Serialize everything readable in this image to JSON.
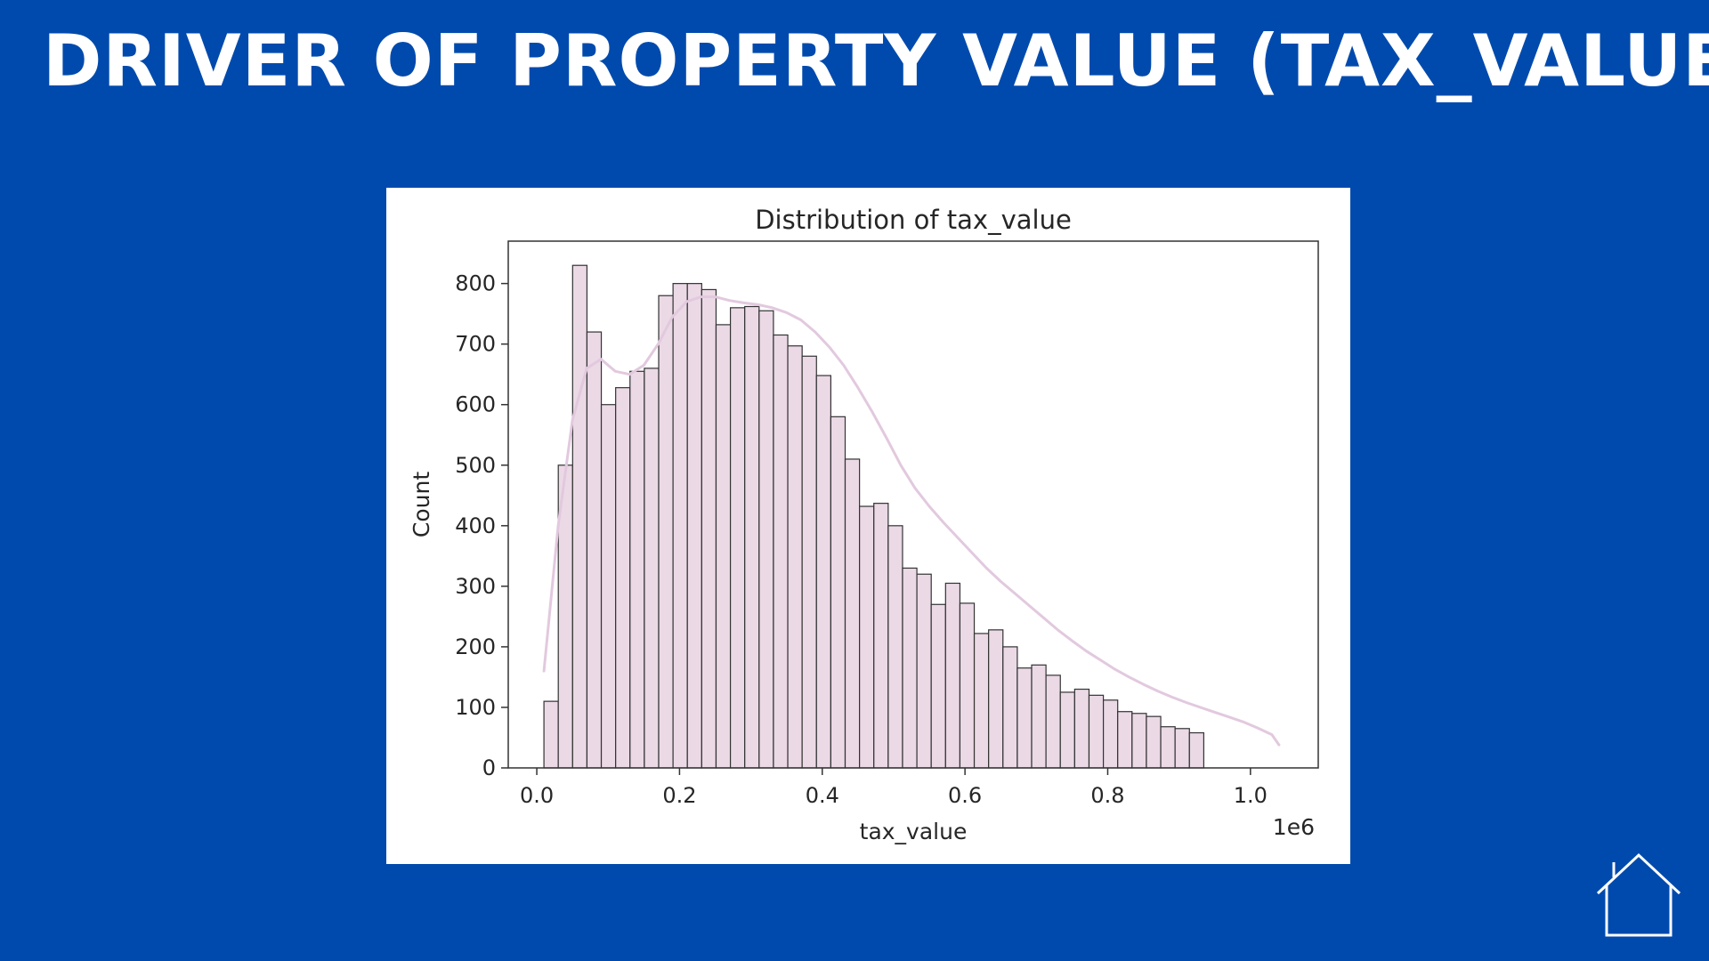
{
  "slide": {
    "title": "DRIVER OF PROPERTY VALUE (TAX_VALUE)",
    "background_color": "#014AAD",
    "home_icon": "home-icon"
  },
  "chart_data": {
    "type": "bar",
    "title": "Distribution of tax_value",
    "xlabel": "tax_value",
    "ylabel": "Count",
    "x_scale_label": "1e6",
    "xlim": [
      -0.04,
      1.095
    ],
    "ylim": [
      0,
      870
    ],
    "xticks": [
      0.0,
      0.2,
      0.4,
      0.6,
      0.8,
      1.0
    ],
    "xtick_labels": [
      "0.0",
      "0.2",
      "0.4",
      "0.6",
      "0.8",
      "1.0"
    ],
    "yticks": [
      0,
      100,
      200,
      300,
      400,
      500,
      600,
      700,
      800
    ],
    "ytick_labels": [
      "0",
      "100",
      "200",
      "300",
      "400",
      "500",
      "600",
      "700",
      "800"
    ],
    "bin_start": 0.01,
    "bin_width": 0.0201,
    "counts": [
      110,
      500,
      830,
      720,
      600,
      628,
      655,
      660,
      780,
      800,
      800,
      790,
      732,
      760,
      762,
      755,
      715,
      697,
      680,
      648,
      580,
      510,
      432,
      437,
      400,
      330,
      320,
      270,
      305,
      272,
      222,
      228,
      200,
      165,
      170,
      153,
      125,
      130,
      120,
      112,
      93,
      90,
      85,
      68,
      65,
      58
    ],
    "kde_x": [
      0.01,
      0.03,
      0.05,
      0.07,
      0.09,
      0.11,
      0.13,
      0.15,
      0.17,
      0.19,
      0.21,
      0.23,
      0.25,
      0.27,
      0.29,
      0.31,
      0.33,
      0.35,
      0.37,
      0.39,
      0.41,
      0.43,
      0.45,
      0.47,
      0.49,
      0.51,
      0.53,
      0.55,
      0.57,
      0.59,
      0.61,
      0.63,
      0.65,
      0.67,
      0.69,
      0.71,
      0.73,
      0.75,
      0.77,
      0.79,
      0.81,
      0.83,
      0.85,
      0.87,
      0.89,
      0.91,
      0.93,
      0.95,
      0.97,
      0.99,
      1.01,
      1.03,
      1.04
    ],
    "kde_y": [
      160,
      400,
      575,
      660,
      675,
      655,
      650,
      665,
      700,
      745,
      770,
      778,
      778,
      772,
      768,
      765,
      760,
      752,
      740,
      720,
      695,
      665,
      628,
      588,
      545,
      500,
      462,
      432,
      405,
      380,
      355,
      330,
      308,
      288,
      268,
      248,
      228,
      210,
      193,
      178,
      163,
      150,
      138,
      127,
      117,
      108,
      100,
      92,
      84,
      76,
      66,
      55,
      38
    ],
    "bar_color": "#EBD9E6",
    "bar_edge_color": "#333333",
    "kde_color": "#E2C9DE"
  }
}
